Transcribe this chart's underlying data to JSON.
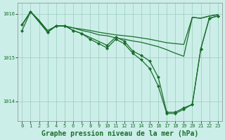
{
  "title": "Graphe pression niveau de la mer (hPa)",
  "background_color": "#cceee8",
  "grid_color": "#99ccbb",
  "line_color": "#1a6e2e",
  "marker_color": "#1a6e2e",
  "xlim": [
    -0.5,
    23.5
  ],
  "ylim": [
    1013.55,
    1016.25
  ],
  "yticks": [
    1014,
    1015,
    1016
  ],
  "xticks": [
    0,
    1,
    2,
    3,
    4,
    5,
    6,
    7,
    8,
    9,
    10,
    11,
    12,
    13,
    14,
    15,
    16,
    17,
    18,
    19,
    20,
    21,
    22,
    23
  ],
  "series": [
    {
      "x": [
        0,
        1,
        2,
        3,
        4,
        5,
        6,
        7,
        8,
        9,
        10,
        11,
        12,
        13,
        14,
        15,
        16,
        17,
        18,
        19,
        20,
        21,
        22,
        23
      ],
      "y": [
        1015.75,
        1016.05,
        1015.85,
        1015.62,
        1015.72,
        1015.72,
        1015.68,
        1015.65,
        1015.62,
        1015.58,
        1015.55,
        1015.52,
        1015.5,
        1015.48,
        1015.45,
        1015.42,
        1015.38,
        1015.34,
        1015.32,
        1015.3,
        1015.92,
        1015.9,
        1015.95,
        1015.98
      ],
      "has_markers": false,
      "linewidth": 0.9
    },
    {
      "x": [
        0,
        1,
        2,
        3,
        4,
        5,
        6,
        7,
        8,
        9,
        10,
        11,
        12,
        13,
        14,
        15,
        16,
        17,
        18,
        19,
        20,
        21,
        22,
        23
      ],
      "y": [
        1015.75,
        1016.05,
        1015.85,
        1015.58,
        1015.72,
        1015.72,
        1015.68,
        1015.62,
        1015.58,
        1015.52,
        1015.5,
        1015.45,
        1015.42,
        1015.38,
        1015.35,
        1015.3,
        1015.25,
        1015.18,
        1015.1,
        1015.03,
        1015.92,
        1015.9,
        1015.95,
        1015.98
      ],
      "has_markers": false,
      "linewidth": 0.9
    },
    {
      "x": [
        0,
        1,
        3,
        4,
        5,
        6,
        7,
        10,
        11,
        12,
        13,
        14,
        15,
        16,
        17,
        18,
        19,
        20,
        21,
        22,
        23
      ],
      "y": [
        1015.75,
        1016.05,
        1015.58,
        1015.73,
        1015.73,
        1015.62,
        1015.55,
        1015.28,
        1015.47,
        1015.38,
        1015.15,
        1015.05,
        1014.92,
        1014.55,
        1013.75,
        1013.75,
        1013.85,
        1013.93,
        1015.2,
        1015.9,
        1015.95
      ],
      "has_markers": true,
      "linewidth": 0.9
    },
    {
      "x": [
        0,
        1,
        3,
        4,
        5,
        6,
        7,
        8,
        9,
        10,
        11,
        12,
        13,
        14,
        15,
        16,
        17,
        18,
        19,
        20,
        21,
        22,
        23
      ],
      "y": [
        1015.62,
        1016.05,
        1015.58,
        1015.73,
        1015.73,
        1015.62,
        1015.55,
        1015.42,
        1015.32,
        1015.22,
        1015.42,
        1015.32,
        1015.1,
        1014.95,
        1014.75,
        1014.35,
        1013.72,
        1013.72,
        1013.82,
        1013.93,
        1015.2,
        1015.9,
        1015.95
      ],
      "has_markers": true,
      "linewidth": 0.9
    }
  ],
  "title_fontsize": 7,
  "tick_fontsize": 5,
  "tick_fontfamily": "monospace"
}
